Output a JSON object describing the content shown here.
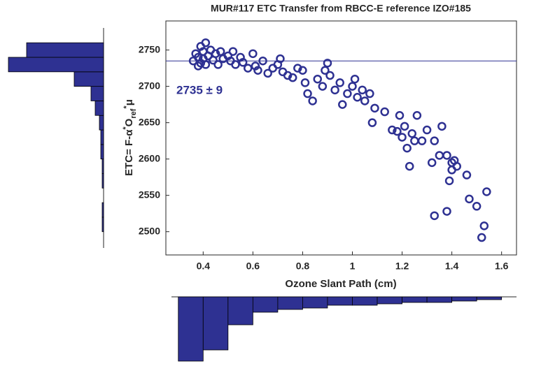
{
  "chart_data": [
    {
      "type": "scatter",
      "title": "MUR#117 ETC Transfer from RBCC-E reference IZO#185",
      "xlabel": "Ozone Slant Path (cm)",
      "ylabel_parts": [
        "ETC= F-α",
        "*",
        "O",
        "ref",
        "*",
        "μ"
      ],
      "annotation": "2735 ± 9",
      "hline": 2735,
      "color": "#2e3192",
      "xlim": [
        0.25,
        1.66
      ],
      "ylim": [
        2468,
        2790
      ],
      "xticks": [
        0.4,
        0.6,
        0.8,
        1,
        1.2,
        1.4,
        1.6
      ],
      "yticks": [
        2500,
        2550,
        2600,
        2650,
        2700,
        2750
      ],
      "x": [
        0.36,
        0.37,
        0.38,
        0.38,
        0.39,
        0.39,
        0.4,
        0.4,
        0.41,
        0.41,
        0.42,
        0.43,
        0.44,
        0.45,
        0.46,
        0.47,
        0.48,
        0.5,
        0.51,
        0.52,
        0.53,
        0.55,
        0.56,
        0.58,
        0.6,
        0.61,
        0.62,
        0.64,
        0.66,
        0.68,
        0.7,
        0.71,
        0.72,
        0.74,
        0.76,
        0.78,
        0.8,
        0.81,
        0.82,
        0.84,
        0.86,
        0.88,
        0.89,
        0.9,
        0.91,
        0.93,
        0.95,
        0.96,
        0.98,
        1.0,
        1.01,
        1.02,
        1.04,
        1.05,
        1.07,
        1.08,
        1.09,
        1.13,
        1.16,
        1.19,
        1.2,
        1.21,
        1.22,
        1.24,
        1.25,
        1.26,
        1.28,
        1.3,
        1.32,
        1.33,
        1.35,
        1.36,
        1.38,
        1.39,
        1.4,
        1.4,
        1.41,
        1.42,
        1.46,
        1.47,
        1.5,
        1.52,
        1.53,
        1.54,
        1.38,
        1.33,
        1.23,
        1.18
      ],
      "values": [
        2735,
        2745,
        2740,
        2728,
        2755,
        2732,
        2748,
        2738,
        2760,
        2730,
        2742,
        2750,
        2736,
        2745,
        2730,
        2748,
        2738,
        2742,
        2735,
        2748,
        2730,
        2740,
        2733,
        2725,
        2745,
        2728,
        2722,
        2735,
        2718,
        2725,
        2730,
        2738,
        2720,
        2715,
        2712,
        2725,
        2722,
        2705,
        2690,
        2680,
        2710,
        2700,
        2722,
        2732,
        2715,
        2695,
        2705,
        2675,
        2690,
        2700,
        2710,
        2685,
        2695,
        2680,
        2690,
        2650,
        2670,
        2665,
        2640,
        2660,
        2630,
        2645,
        2615,
        2635,
        2625,
        2660,
        2625,
        2640,
        2595,
        2625,
        2605,
        2645,
        2605,
        2570,
        2595,
        2585,
        2598,
        2590,
        2578,
        2545,
        2535,
        2492,
        2508,
        2555,
        2528,
        2522,
        2590,
        2638
      ]
    },
    {
      "type": "histogram",
      "orientation": "vertical",
      "color": "#2e3192",
      "bins": [
        0.3,
        0.4,
        0.5,
        0.6,
        0.7,
        0.8,
        0.9,
        1.0,
        1.1,
        1.2,
        1.3,
        1.4,
        1.5,
        1.6
      ],
      "values": [
        46,
        38,
        20,
        11,
        9,
        8,
        6,
        6,
        5,
        4,
        4,
        3,
        2
      ]
    },
    {
      "type": "histogram",
      "orientation": "horizontal",
      "color": "#2e3192",
      "bins": [
        2500,
        2520,
        2540,
        2560,
        2580,
        2600,
        2620,
        2640,
        2660,
        2680,
        2700,
        2720,
        2740,
        2760
      ],
      "values": [
        1,
        1,
        0,
        1,
        1,
        2,
        2,
        3,
        6,
        9,
        21,
        68,
        55
      ]
    }
  ]
}
